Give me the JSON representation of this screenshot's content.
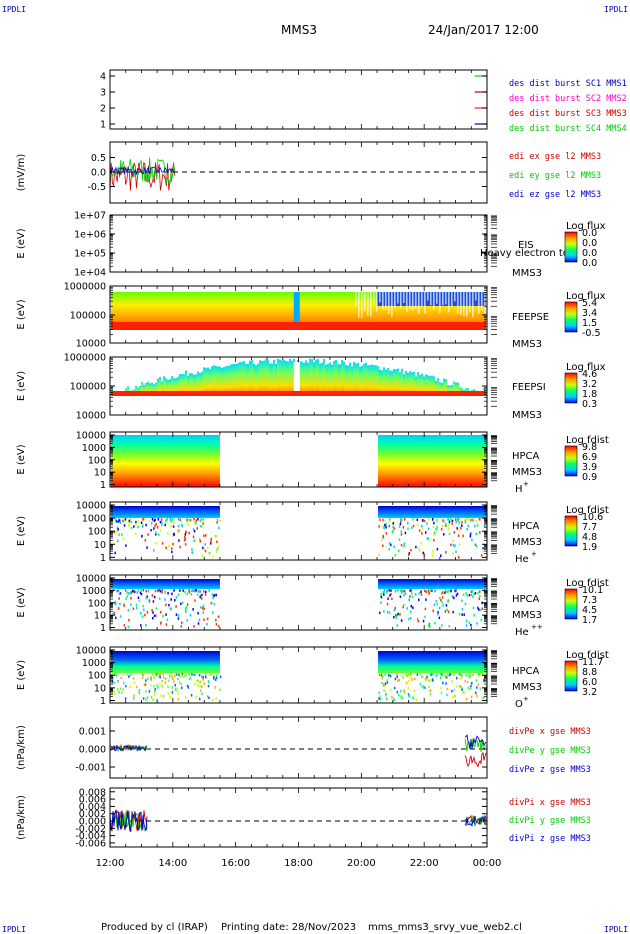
{
  "header": {
    "corner_tl": "IPDLI",
    "corner_tr": "IPDLI",
    "corner_bl": "IPDLI",
    "corner_br": "IPDLI",
    "mission": "MMS3",
    "datetime": "24/Jan/2017 12:00"
  },
  "footer": {
    "produced_by": "Produced by cl (IRAP)",
    "printing_date": "Printing date: 28/Nov/2023",
    "script_name": "mms_mms3_srvy_vue_web2.cl"
  },
  "colors": {
    "red": "#cc0000",
    "magenta": "#ff00cc",
    "green": "#00cc00",
    "blue": "#0000cc"
  },
  "chart_data": [
    {
      "type": "line",
      "id": "burst",
      "ylabel": "",
      "yticks": [
        "4",
        "3",
        "2",
        "1"
      ],
      "ylim": [
        0.5,
        4.5
      ],
      "xlabel": "",
      "legend": [
        {
          "name": "des dist burst SC1 MMS1",
          "color": "#0000cc"
        },
        {
          "name": "des dist burst SC2 MMS2",
          "color": "#ff00cc"
        },
        {
          "name": "des dist burst SC3 MMS3",
          "color": "#cc0000"
        },
        {
          "name": "des dist burst SC4 MMS4",
          "color": "#00cc00"
        }
      ],
      "series": [
        {
          "name": "des dist burst SC4 MMS4",
          "color": "#00cc00",
          "y": 4,
          "x": [
            23.8,
            24.0
          ]
        },
        {
          "name": "des dist burst SC3 MMS3",
          "color": "#cc0000",
          "y": 3,
          "x": [
            23.8,
            24.0
          ]
        },
        {
          "name": "des dist burst SC2 MMS2",
          "color": "#ff00cc",
          "y": 2,
          "x": [
            23.8,
            24.0
          ]
        },
        {
          "name": "des dist burst SC1 MMS1",
          "color": "#0000cc",
          "y": 1,
          "x": [
            23.8,
            24.0
          ]
        }
      ]
    },
    {
      "type": "line",
      "id": "edi",
      "ylabel": "(mV/m)",
      "yticks": [
        "0.5",
        "0.0",
        "-0.5"
      ],
      "ylim": [
        -1.0,
        1.0
      ],
      "legend": [
        {
          "name": "edi ex gse l2 MMS3",
          "color": "#cc0000"
        },
        {
          "name": "edi ey gse l2 MMS3",
          "color": "#00cc00"
        },
        {
          "name": "edi ez gse l2 MMS3",
          "color": "#0000cc"
        }
      ],
      "data_range_hours": [
        12.0,
        14.1
      ],
      "zero_line": true
    },
    {
      "type": "heatmap",
      "id": "eis",
      "ylabel": "E (eV)",
      "yticks": [
        "1e+07",
        "1e+06",
        "1e+05",
        "1e+04"
      ],
      "instrument": "EIS",
      "spacecraft": "MMS3",
      "overlay_text": "Heavy electron to",
      "colorbar_title": "Log flux",
      "colorbar_ticks": [
        "0.0",
        "0.0",
        "0.0",
        "0.0"
      ],
      "empty": true
    },
    {
      "type": "heatmap",
      "id": "feeps_e",
      "ylabel": "E (eV)",
      "yticks": [
        "1000000",
        "100000",
        "10000"
      ],
      "instrument": "FEEPSE",
      "spacecraft": "MMS3",
      "colorbar_title": "Log flux",
      "colorbar_ticks": [
        "5.4",
        "3.4",
        "1.5",
        "-0.5"
      ],
      "data_range_hours": [
        12.0,
        24.0
      ]
    },
    {
      "type": "heatmap",
      "id": "feeps_i",
      "ylabel": "E (eV)",
      "yticks": [
        "1000000",
        "100000",
        "10000"
      ],
      "instrument": "FEEPSI",
      "spacecraft": "MMS3",
      "colorbar_title": "Log flux",
      "colorbar_ticks": [
        "4.6",
        "3.2",
        "1.8",
        "0.3"
      ],
      "data_range_hours": [
        12.0,
        24.0
      ]
    },
    {
      "type": "heatmap",
      "id": "hpca_h",
      "ylabel": "E (eV)",
      "yticks": [
        "10000",
        "1000",
        "100",
        "10",
        "1"
      ],
      "instrument": "HPCA",
      "spacecraft": "MMS3",
      "species": "H",
      "species_sup": "+",
      "colorbar_title": "Log fdist",
      "colorbar_ticks": [
        "9.8",
        "6.9",
        "3.9",
        "0.9"
      ],
      "data_ranges_hours": [
        [
          12.0,
          15.5
        ],
        [
          20.5,
          24.0
        ]
      ]
    },
    {
      "type": "heatmap",
      "id": "hpca_he",
      "ylabel": "E (eV)",
      "yticks": [
        "10000",
        "1000",
        "100",
        "10",
        "1"
      ],
      "instrument": "HPCA",
      "spacecraft": "MMS3",
      "species": "He",
      "species_sup": "+",
      "colorbar_title": "Log fdist",
      "colorbar_ticks": [
        "10.6",
        "7.7",
        "4.8",
        "1.9"
      ],
      "data_ranges_hours": [
        [
          12.0,
          15.5
        ],
        [
          20.5,
          24.0
        ]
      ]
    },
    {
      "type": "heatmap",
      "id": "hpca_hepp",
      "ylabel": "E (eV)",
      "yticks": [
        "10000",
        "1000",
        "100",
        "10",
        "1"
      ],
      "instrument": "HPCA",
      "spacecraft": "MMS3",
      "species": "He",
      "species_sup": "++",
      "colorbar_title": "Log fdist",
      "colorbar_ticks": [
        "10.1",
        "7.3",
        "4.5",
        "1.7"
      ],
      "data_ranges_hours": [
        [
          12.0,
          15.5
        ],
        [
          20.5,
          24.0
        ]
      ]
    },
    {
      "type": "heatmap",
      "id": "hpca_o",
      "ylabel": "E (eV)",
      "yticks": [
        "10000",
        "1000",
        "100",
        "10",
        "1"
      ],
      "instrument": "HPCA",
      "spacecraft": "MMS3",
      "species": "O",
      "species_sup": "+",
      "colorbar_title": "Log fdist",
      "colorbar_ticks": [
        "11.7",
        "8.8",
        "6.0",
        "3.2"
      ],
      "data_ranges_hours": [
        [
          12.0,
          15.5
        ],
        [
          20.5,
          24.0
        ]
      ]
    },
    {
      "type": "line",
      "id": "divpe",
      "ylabel": "(nPa/km)",
      "yticks": [
        "0.001",
        "0.000",
        "-0.001"
      ],
      "ylim": [
        -0.0015,
        0.0015
      ],
      "legend": [
        {
          "name": "divPe x gse MMS3",
          "color": "#cc0000"
        },
        {
          "name": "divPe y gse MMS3",
          "color": "#00cc00"
        },
        {
          "name": "divPe z gse MMS3",
          "color": "#0000cc"
        }
      ],
      "data_ranges_hours": [
        [
          12.0,
          13.2
        ],
        [
          23.3,
          24.0
        ]
      ],
      "zero_line": true
    },
    {
      "type": "line",
      "id": "divpi",
      "ylabel": "(nPa/km)",
      "yticks": [
        "0.008",
        "0.006",
        "0.004",
        "0.002",
        "0.000",
        "-0.002",
        "-0.004",
        "-0.006"
      ],
      "ylim": [
        -0.007,
        0.009
      ],
      "legend": [
        {
          "name": "divPi x gse MMS3",
          "color": "#cc0000"
        },
        {
          "name": "divPi y gse MMS3",
          "color": "#00cc00"
        },
        {
          "name": "divPi z gse MMS3",
          "color": "#0000cc"
        }
      ],
      "data_ranges_hours": [
        [
          12.0,
          13.2
        ],
        [
          23.3,
          24.0
        ]
      ],
      "zero_line": true,
      "xticks": [
        "12:00",
        "14:00",
        "16:00",
        "18:00",
        "20:00",
        "22:00",
        "00:00"
      ],
      "xlim_hours": [
        12.0,
        24.0
      ]
    }
  ]
}
